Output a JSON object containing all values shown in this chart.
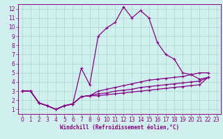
{
  "xlabel": "Windchill (Refroidissement éolien,°C)",
  "background_color": "#cff0ee",
  "grid_color": "#aad8cc",
  "line_color": "#880088",
  "spine_color": "#880088",
  "xlim": [
    -0.5,
    23.5
  ],
  "ylim": [
    0.5,
    12.5
  ],
  "xticks": [
    0,
    1,
    2,
    3,
    4,
    5,
    6,
    7,
    8,
    9,
    10,
    11,
    12,
    13,
    14,
    15,
    16,
    17,
    18,
    19,
    20,
    21,
    22,
    23
  ],
  "yticks": [
    1,
    2,
    3,
    4,
    5,
    6,
    7,
    8,
    9,
    10,
    11,
    12
  ],
  "series": [
    {
      "x": [
        0,
        1,
        2,
        3,
        4,
        5,
        6,
        7,
        8,
        9,
        10,
        11,
        12,
        13,
        14,
        15,
        16,
        17,
        18,
        19,
        20,
        21,
        22
      ],
      "y": [
        3.0,
        3.0,
        1.7,
        1.4,
        1.0,
        1.4,
        1.6,
        5.5,
        3.7,
        9.0,
        9.9,
        10.5,
        12.2,
        11.0,
        11.8,
        11.0,
        8.3,
        7.0,
        6.5,
        5.0,
        4.8,
        4.3,
        4.5
      ]
    },
    {
      "x": [
        0,
        1,
        2,
        3,
        4,
        5,
        6,
        7,
        8,
        9,
        10,
        11,
        12,
        13,
        14,
        15,
        16,
        17,
        18,
        19,
        20,
        21,
        22
      ],
      "y": [
        3.0,
        3.0,
        1.7,
        1.4,
        1.0,
        1.4,
        1.6,
        2.4,
        2.5,
        3.0,
        3.2,
        3.4,
        3.6,
        3.8,
        4.0,
        4.2,
        4.3,
        4.4,
        4.5,
        4.6,
        4.8,
        5.0,
        5.0
      ]
    },
    {
      "x": [
        0,
        1,
        2,
        3,
        4,
        5,
        6,
        7,
        8,
        9,
        10,
        11,
        12,
        13,
        14,
        15,
        16,
        17,
        18,
        19,
        20,
        21,
        22
      ],
      "y": [
        3.0,
        3.0,
        1.7,
        1.4,
        1.0,
        1.4,
        1.6,
        2.4,
        2.5,
        2.7,
        2.8,
        3.0,
        3.1,
        3.2,
        3.4,
        3.5,
        3.6,
        3.7,
        3.8,
        3.9,
        4.0,
        4.1,
        4.5
      ]
    },
    {
      "x": [
        0,
        1,
        2,
        3,
        4,
        5,
        6,
        7,
        8,
        9,
        10,
        11,
        12,
        13,
        14,
        15,
        16,
        17,
        18,
        19,
        20,
        21,
        22
      ],
      "y": [
        3.0,
        3.0,
        1.7,
        1.4,
        1.0,
        1.4,
        1.6,
        2.4,
        2.5,
        2.5,
        2.6,
        2.7,
        2.8,
        2.9,
        3.0,
        3.1,
        3.2,
        3.3,
        3.4,
        3.5,
        3.6,
        3.7,
        4.5
      ]
    }
  ],
  "marker": "+",
  "marker_size": 3.5,
  "line_width": 0.9,
  "tick_labelsize": 5.5,
  "xlabel_fontsize": 5.5,
  "xlabel_fontweight": "bold"
}
